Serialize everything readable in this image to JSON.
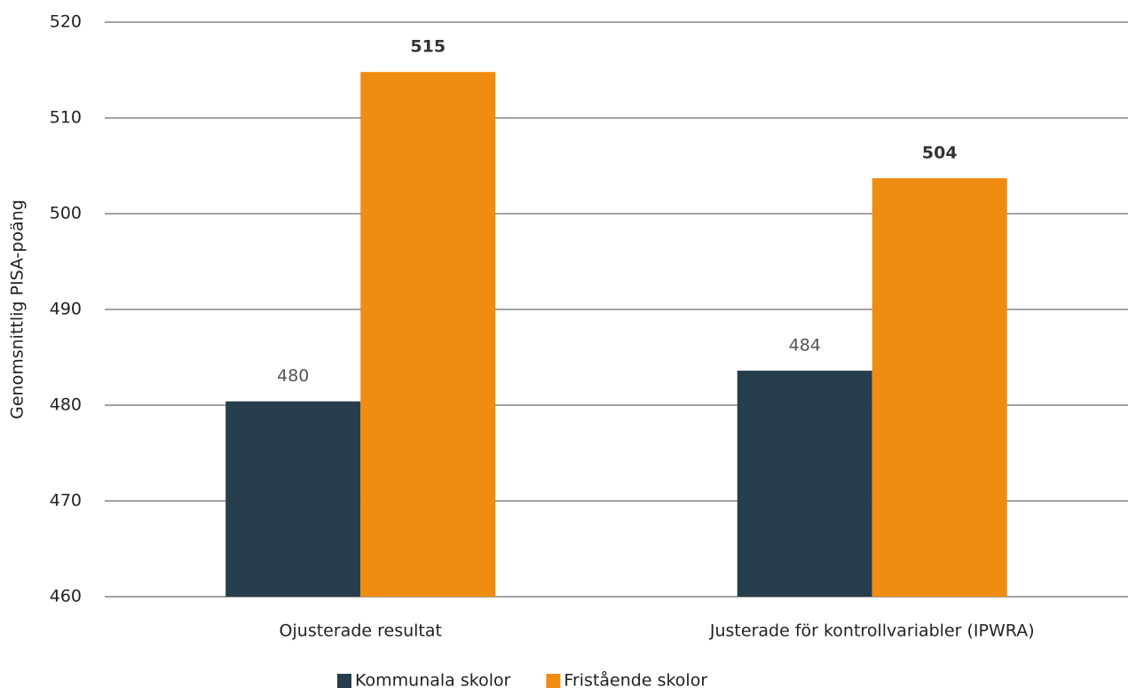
{
  "chart_data": {
    "type": "bar",
    "y_label": "Genomsnittlig PISA-poäng",
    "categories": [
      "Ojusterade resultat",
      "Justerade för kontrollvariabler (IPWRA)"
    ],
    "series": [
      {
        "name": "Kommunala skolor",
        "color": "#263d4b",
        "values": [
          480.4,
          483.6
        ],
        "value_labels": [
          "480",
          "484"
        ]
      },
      {
        "name": "Fristående skolor",
        "color": "#f08c12",
        "values": [
          514.8,
          503.7
        ],
        "value_labels": [
          "515",
          "504"
        ]
      }
    ],
    "ylim": [
      460,
      520
    ],
    "yticks": [
      460,
      470,
      480,
      490,
      500,
      510,
      520
    ],
    "grid": true,
    "legend": "bottom"
  }
}
